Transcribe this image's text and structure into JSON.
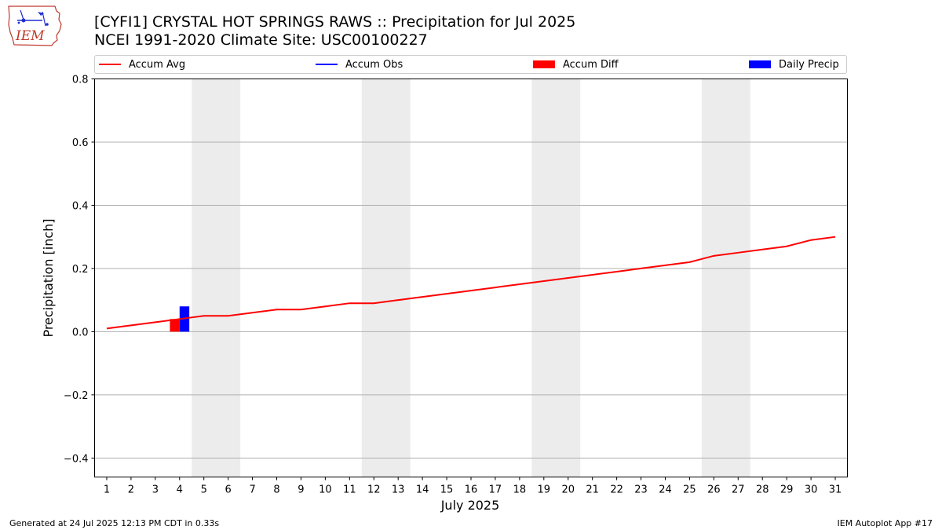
{
  "header": {
    "title": "[CYFI1] CRYSTAL HOT SPRINGS RAWS :: Precipitation for Jul 2025",
    "subtitle": "NCEI 1991-2020 Climate Site: USC00100227",
    "logo_text": "IEM"
  },
  "footer": {
    "generated": "Generated at 24 Jul 2025 12:13 PM CDT in 0.33s",
    "app": "IEM Autoplot App #17"
  },
  "legend": {
    "items": [
      {
        "label": "Accum Avg",
        "kind": "line",
        "color": "#ff0000"
      },
      {
        "label": "Accum Obs",
        "kind": "line",
        "color": "#0000ff"
      },
      {
        "label": "Accum Diff",
        "kind": "patch",
        "color": "#ff0000"
      },
      {
        "label": "Daily Precip",
        "kind": "patch",
        "color": "#0000ff"
      }
    ]
  },
  "chart_data": {
    "type": "line",
    "xlabel": "July 2025",
    "ylabel": "Precipitation [inch]",
    "x": [
      1,
      2,
      3,
      4,
      5,
      6,
      7,
      8,
      9,
      10,
      11,
      12,
      13,
      14,
      15,
      16,
      17,
      18,
      19,
      20,
      21,
      22,
      23,
      24,
      25,
      26,
      27,
      28,
      29,
      30,
      31
    ],
    "ylim": [
      -0.46,
      0.8
    ],
    "yticks": [
      -0.4,
      -0.2,
      0.0,
      0.2,
      0.4,
      0.6,
      0.8
    ],
    "ytick_labels": [
      "−0.4",
      "−0.2",
      "0.0",
      "0.2",
      "0.4",
      "0.6",
      "0.8"
    ],
    "grid": true,
    "weekend_shading": [
      [
        5,
        6
      ],
      [
        12,
        13
      ],
      [
        19,
        20
      ],
      [
        26,
        27
      ]
    ],
    "series": [
      {
        "name": "Accum Avg",
        "kind": "line",
        "color": "#ff0000",
        "values": [
          0.01,
          0.02,
          0.03,
          0.04,
          0.05,
          0.05,
          0.06,
          0.07,
          0.07,
          0.08,
          0.09,
          0.09,
          0.1,
          0.11,
          0.12,
          0.13,
          0.14,
          0.15,
          0.16,
          0.17,
          0.18,
          0.19,
          0.2,
          0.21,
          0.22,
          0.24,
          0.25,
          0.26,
          0.27,
          0.29,
          0.3
        ]
      },
      {
        "name": "Accum Diff",
        "kind": "bar",
        "color": "#ff0000",
        "points": [
          {
            "x": 4,
            "value": 0.04
          }
        ]
      },
      {
        "name": "Daily Precip",
        "kind": "bar",
        "color": "#0000ff",
        "points": [
          {
            "x": 4,
            "value": 0.08
          }
        ]
      }
    ]
  }
}
